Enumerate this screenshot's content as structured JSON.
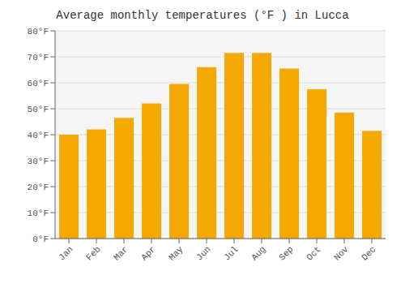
{
  "chart_data": {
    "type": "bar",
    "title": "Average monthly temperatures (°F ) in Lucca",
    "categories": [
      "Jan",
      "Feb",
      "Mar",
      "Apr",
      "May",
      "Jun",
      "Jul",
      "Aug",
      "Sep",
      "Oct",
      "Nov",
      "Dec"
    ],
    "values": [
      40,
      42,
      46.5,
      52,
      59.5,
      66,
      71.5,
      71.5,
      65.5,
      57.5,
      48.5,
      41.5
    ],
    "color": "#F5A800",
    "ylim": [
      0,
      80
    ],
    "yticks": [
      {
        "value": 0,
        "label": "0°F"
      },
      {
        "value": 10,
        "label": "10°F"
      },
      {
        "value": 20,
        "label": "20°F"
      },
      {
        "value": 30,
        "label": "30°F"
      },
      {
        "value": 40,
        "label": "40°F"
      },
      {
        "value": 50,
        "label": "50°F"
      },
      {
        "value": 60,
        "label": "60°F"
      },
      {
        "value": 70,
        "label": "70°F"
      },
      {
        "value": 80,
        "label": "80°F"
      }
    ],
    "grid": true
  }
}
